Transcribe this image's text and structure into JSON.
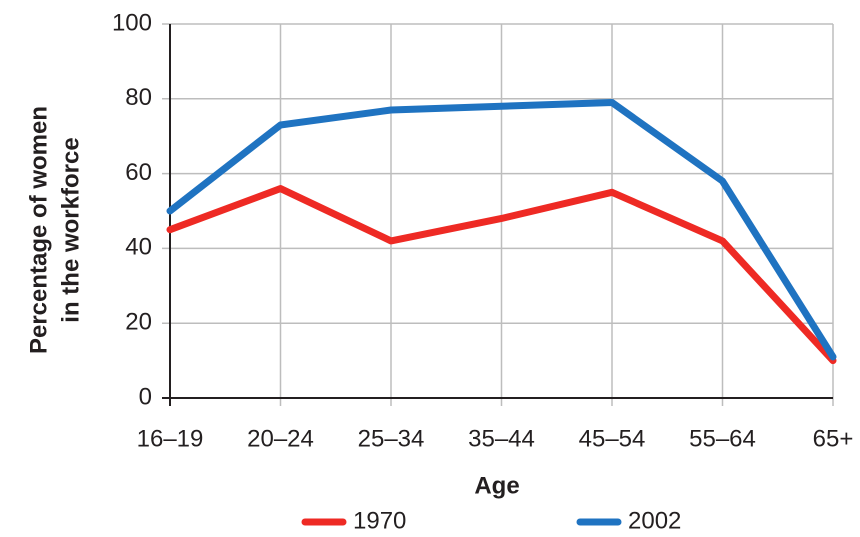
{
  "chart_data": {
    "type": "line",
    "categories": [
      "16–19",
      "20–24",
      "25–34",
      "35–44",
      "45–54",
      "55–64",
      "65+"
    ],
    "series": [
      {
        "name": "1970",
        "color": "#ee2a24",
        "values": [
          45,
          56,
          42,
          48,
          55,
          42,
          10
        ]
      },
      {
        "name": "2002",
        "color": "#1f73c1",
        "values": [
          50,
          73,
          77,
          78,
          79,
          58,
          11
        ]
      }
    ],
    "xlabel": "Age",
    "ylabel": [
      "Percentage of women",
      "in the workforce"
    ],
    "ylim": [
      0,
      100
    ],
    "yticks": [
      0,
      20,
      40,
      60,
      80,
      100
    ],
    "grid": true,
    "legend": "bottom"
  }
}
